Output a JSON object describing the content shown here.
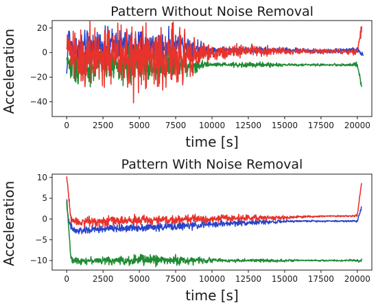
{
  "chart_data": [
    {
      "type": "line",
      "title": "Pattern Without Noise Removal",
      "xlabel": "time [s]",
      "ylabel": "Acceleration",
      "xlim": [
        -1000,
        21000
      ],
      "ylim": [
        -52,
        26
      ],
      "xticks": [
        0,
        2500,
        5000,
        7500,
        10000,
        12500,
        15000,
        17500,
        20000
      ],
      "yticks": [
        20,
        0,
        -20,
        -40
      ],
      "grid": false,
      "series": [
        {
          "color": "#2a44c9",
          "x": [
            0,
            150,
            300,
            1000,
            2000,
            3000,
            4000,
            5000,
            6000,
            7000,
            8000,
            9000,
            9500,
            10000,
            11000,
            12000,
            13000,
            14000,
            15000,
            16000,
            17000,
            18000,
            19000,
            20000,
            20400
          ],
          "y": [
            -18,
            18,
            3,
            3,
            5,
            6,
            6,
            7,
            6,
            5,
            6,
            4,
            3,
            2,
            2,
            2,
            2,
            2,
            2,
            2,
            1,
            1,
            2,
            2,
            -2
          ],
          "spread": [
            5,
            5,
            12,
            14,
            14,
            14,
            13,
            12,
            12,
            12,
            10,
            8,
            3,
            3,
            3,
            3,
            3,
            2,
            2,
            2,
            2,
            2,
            2,
            2,
            3
          ]
        },
        {
          "color": "#1f8a34",
          "x": [
            0,
            150,
            300,
            1000,
            2000,
            3000,
            4000,
            5000,
            6000,
            7000,
            8000,
            9000,
            9500,
            10000,
            11000,
            12000,
            13000,
            14000,
            15000,
            16000,
            17000,
            18000,
            19000,
            20000,
            20300
          ],
          "y": [
            -5,
            -8,
            -12,
            -11,
            -11,
            -10,
            -10,
            -10,
            -10,
            -10,
            -10,
            -10,
            -10,
            -10,
            -10,
            -10,
            -10,
            -10,
            -10,
            -10,
            -10,
            -10,
            -10,
            -10,
            -28
          ],
          "spread": [
            4,
            5,
            14,
            14,
            14,
            14,
            14,
            13,
            13,
            13,
            12,
            10,
            3,
            2,
            2,
            2,
            2,
            2,
            1,
            1,
            1,
            1,
            1,
            2,
            3
          ]
        },
        {
          "color": "#e8322c",
          "x": [
            0,
            150,
            300,
            1000,
            2000,
            3000,
            4000,
            5000,
            6000,
            7000,
            8000,
            9000,
            9500,
            10000,
            11000,
            12000,
            13000,
            14000,
            15000,
            16000,
            17000,
            18000,
            19000,
            20000,
            20300
          ],
          "y": [
            2,
            10,
            0,
            -2,
            -3,
            -3,
            -4,
            -5,
            -5,
            -4,
            -3,
            -2,
            0,
            0,
            0,
            1,
            1,
            1,
            1,
            1,
            1,
            1,
            1,
            1,
            20
          ],
          "spread": [
            8,
            10,
            28,
            30,
            32,
            30,
            30,
            28,
            28,
            28,
            22,
            16,
            8,
            6,
            6,
            6,
            5,
            4,
            3,
            3,
            2,
            2,
            2,
            3,
            5
          ]
        }
      ]
    },
    {
      "type": "line",
      "title": "Pattern With Noise Removal",
      "xlabel": "time [s]",
      "ylabel": "Acceleration",
      "xlim": [
        -1000,
        21000
      ],
      "ylim": [
        -12.3,
        10.8
      ],
      "xticks": [
        0,
        2500,
        5000,
        7500,
        10000,
        12500,
        15000,
        17500,
        20000
      ],
      "yticks": [
        10,
        5,
        0,
        -5,
        -10
      ],
      "grid": false,
      "series": [
        {
          "color": "#2a44c9",
          "x": [
            0,
            100,
            300,
            600,
            1000,
            2000,
            3000,
            4000,
            5000,
            6000,
            7000,
            8000,
            9000,
            10000,
            11000,
            12000,
            13000,
            14000,
            15000,
            16000,
            17000,
            18000,
            19000,
            20000,
            20300
          ],
          "y": [
            5,
            0,
            -2,
            -3,
            -2.8,
            -2.5,
            -2.3,
            -2.2,
            -2,
            -2,
            -1.8,
            -1.7,
            -1.5,
            -1.3,
            -1.1,
            -0.9,
            -0.8,
            -0.7,
            -0.6,
            -0.5,
            -0.5,
            -0.5,
            -0.5,
            -0.5,
            3
          ],
          "spread": [
            0.5,
            0.5,
            1,
            1,
            1,
            1,
            1,
            1,
            1,
            1,
            1,
            1,
            0.9,
            0.8,
            0.8,
            0.7,
            0.6,
            0.5,
            0.3,
            0.2,
            0.2,
            0.2,
            0.2,
            0.3,
            0.5
          ]
        },
        {
          "color": "#1f8a34",
          "x": [
            0,
            100,
            300,
            600,
            1000,
            2000,
            3000,
            4000,
            5000,
            6000,
            7000,
            8000,
            9000,
            10000,
            11000,
            12000,
            13000,
            14000,
            15000,
            16000,
            17000,
            18000,
            19000,
            20000,
            20300
          ],
          "y": [
            4,
            0,
            -10,
            -10,
            -10,
            -10,
            -10,
            -10,
            -9.8,
            -9.8,
            -9.9,
            -10,
            -10,
            -9.9,
            -10,
            -10,
            -10,
            -10,
            -10,
            -10,
            -10,
            -10,
            -10,
            -10,
            -10
          ],
          "spread": [
            0.5,
            0.5,
            0.8,
            0.8,
            0.8,
            0.9,
            1,
            1.2,
            1.5,
            1.3,
            1.1,
            1.2,
            0.9,
            0.5,
            0.4,
            0.4,
            0.4,
            0.4,
            0.3,
            0.2,
            0.2,
            0.2,
            0.2,
            0.3,
            0.5
          ]
        },
        {
          "color": "#e8322c",
          "x": [
            0,
            100,
            300,
            600,
            1000,
            2000,
            3000,
            4000,
            5000,
            6000,
            7000,
            8000,
            9000,
            10000,
            11000,
            12000,
            13000,
            14000,
            15000,
            16000,
            17000,
            18000,
            19000,
            20000,
            20300
          ],
          "y": [
            10,
            7,
            0,
            -0.5,
            -0.6,
            -0.5,
            -0.5,
            -0.4,
            -0.3,
            -0.3,
            -0.2,
            -0.1,
            0,
            0.1,
            0.2,
            0.2,
            0.3,
            0.3,
            0.3,
            0.5,
            0.6,
            0.7,
            0.7,
            0.8,
            9
          ],
          "spread": [
            0.5,
            0.8,
            1.2,
            1.2,
            1.2,
            1.2,
            1.2,
            1.2,
            1.2,
            1.2,
            1.2,
            1.1,
            1,
            0.9,
            0.8,
            0.8,
            0.7,
            0.6,
            0.5,
            0.3,
            0.2,
            0.2,
            0.2,
            0.3,
            0.6
          ]
        }
      ]
    }
  ]
}
